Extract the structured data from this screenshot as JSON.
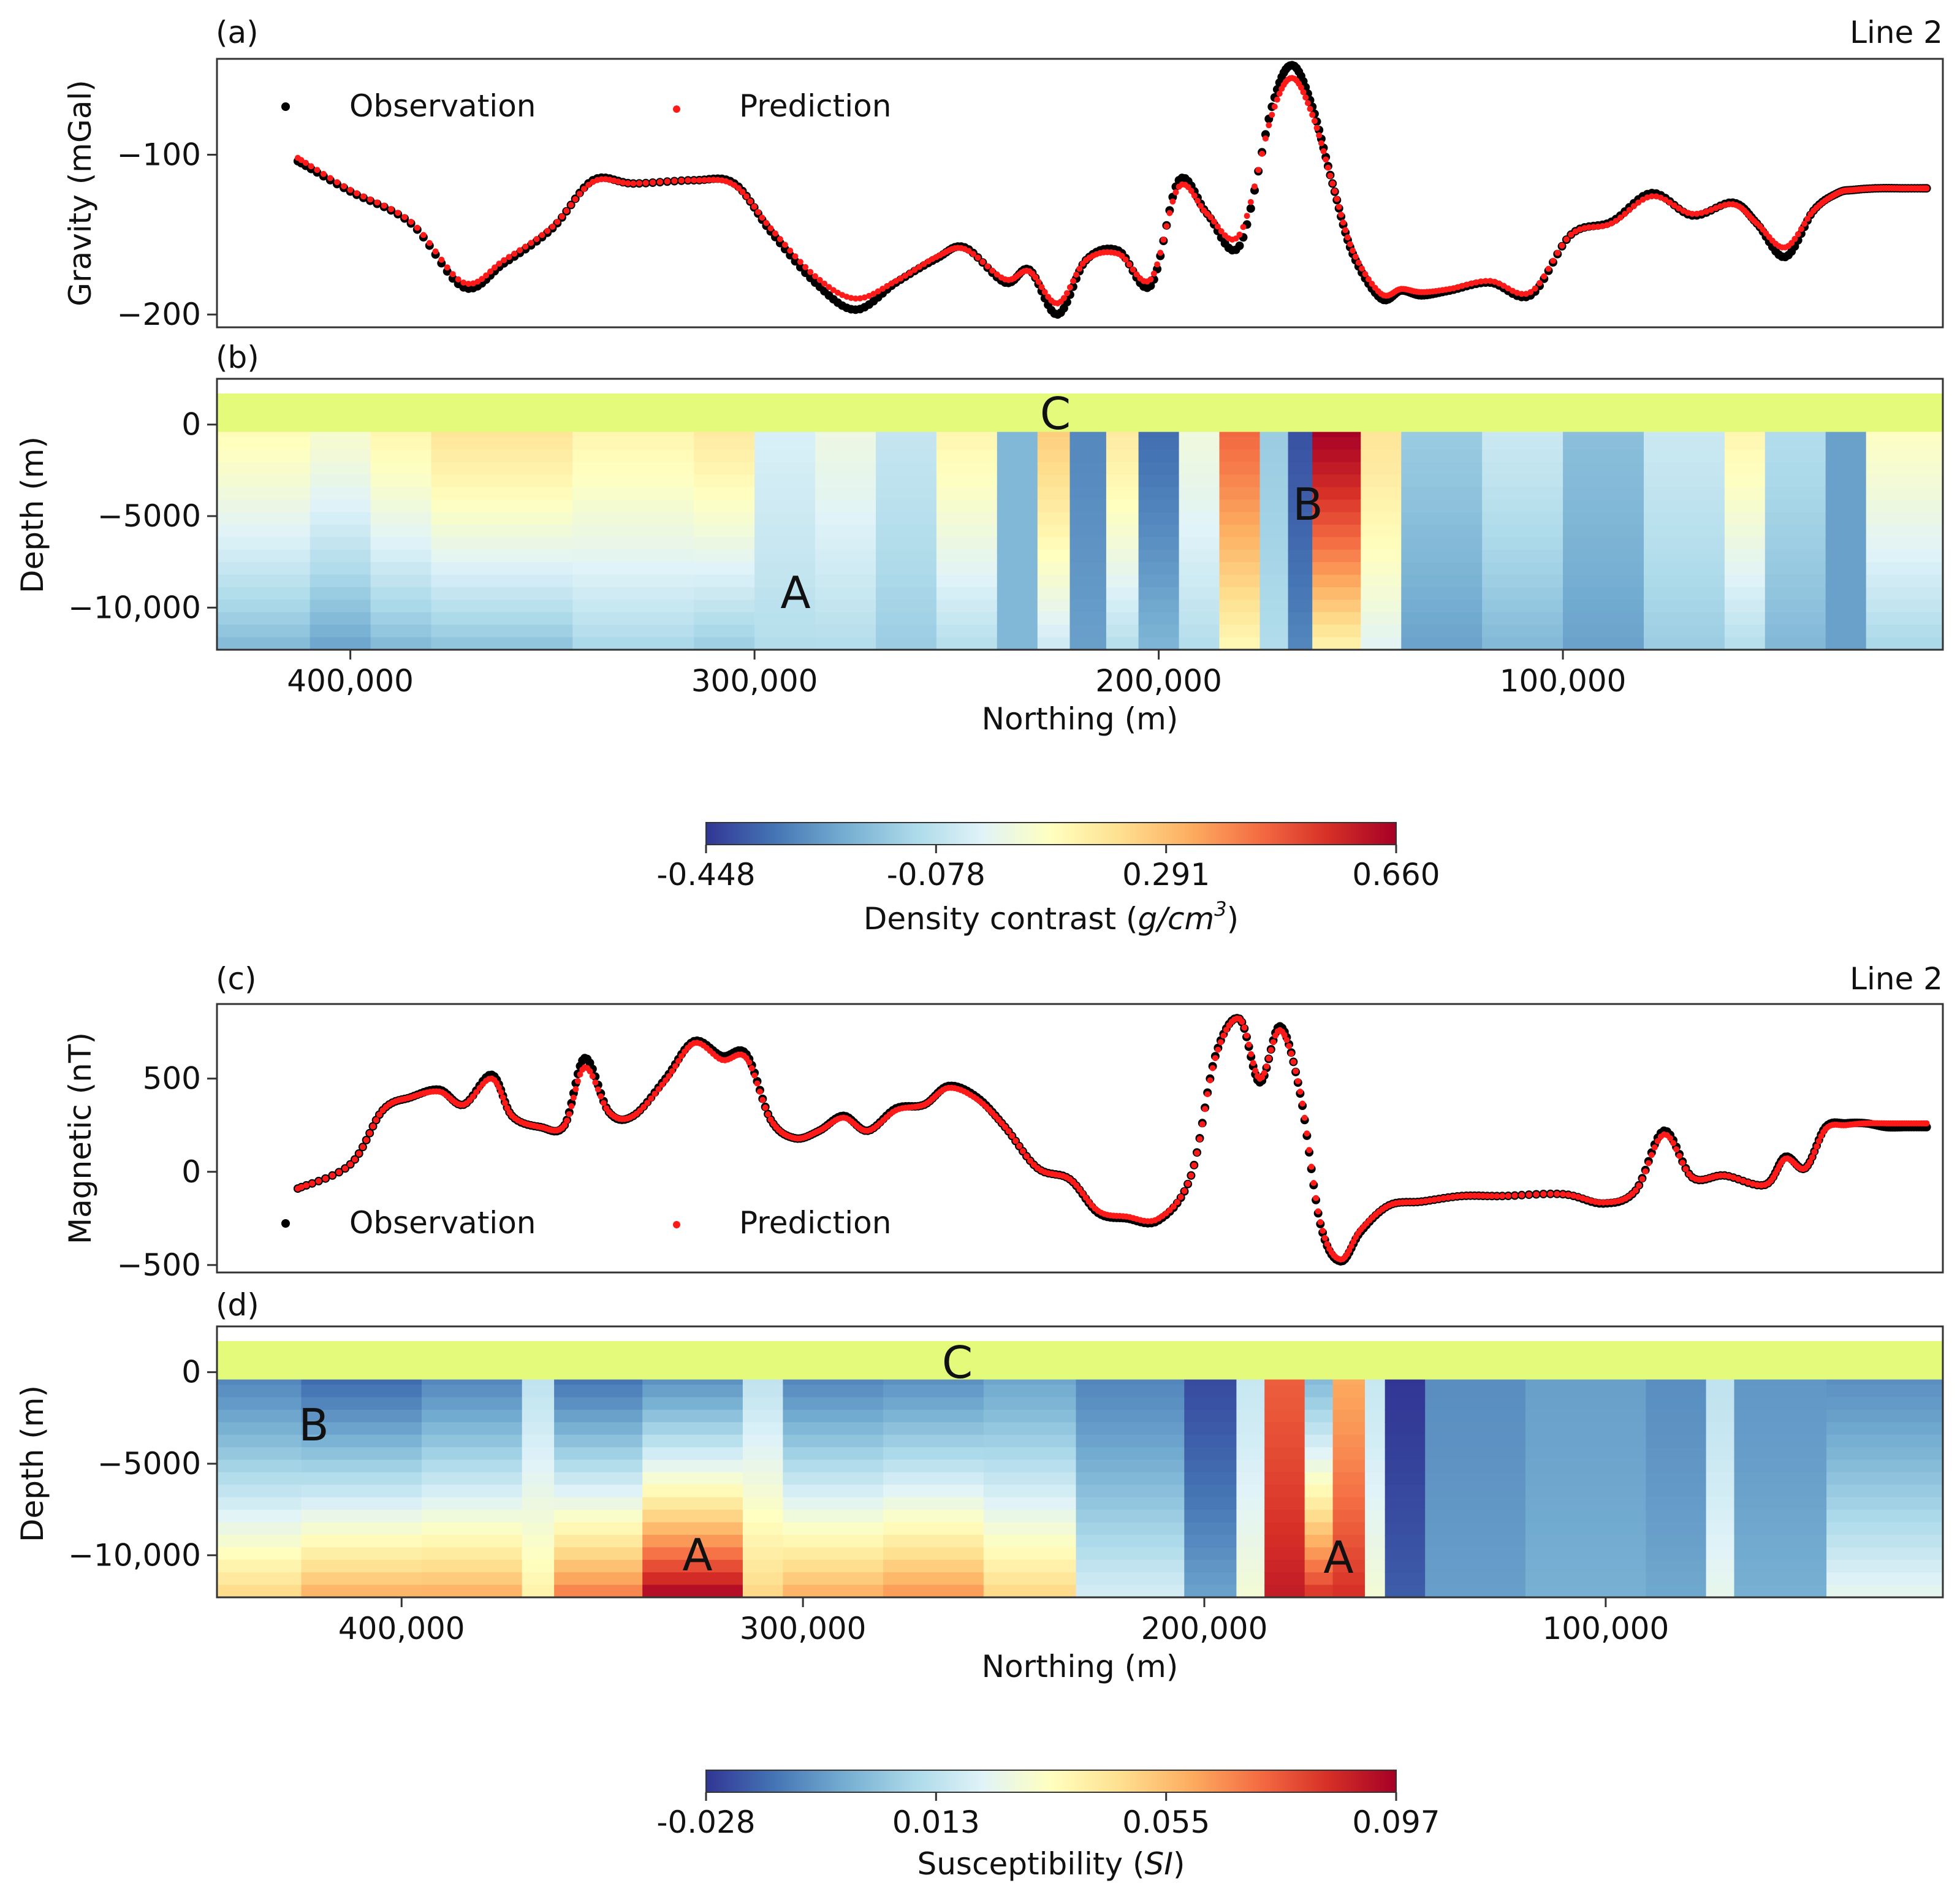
{
  "figure": {
    "line_label": "Line 2"
  },
  "chart_data": [
    {
      "panel": "(a)",
      "type": "line",
      "title": "Line 2",
      "ylabel": "Gravity (mGal)",
      "yticks": [
        -100,
        -200
      ],
      "ytick_labels": [
        "−100",
        "−200"
      ],
      "ylim": [
        -208,
        -40
      ],
      "xlim": [
        433000,
        6000
      ],
      "legend": {
        "placement": "top-left"
      },
      "series": [
        {
          "name": "Observation",
          "color": "#000000",
          "x": [
            413000,
            400000,
            385000,
            372000,
            362000,
            350000,
            340000,
            330000,
            315000,
            305000,
            296000,
            285000,
            275000,
            265000,
            255000,
            248000,
            238000,
            232000,
            225000,
            218000,
            210000,
            202000,
            195000,
            188000,
            180000,
            172000,
            167000,
            162000,
            157000,
            152000,
            145000,
            140000,
            135000,
            128000,
            118000,
            108000,
            98000,
            88000,
            78000,
            68000,
            58000,
            52000,
            45000,
            38000,
            32000,
            28000,
            22000,
            16000,
            10000
          ],
          "y": [
            -104,
            -123,
            -143,
            -183,
            -168,
            -146,
            -116,
            -118,
            -116,
            -118,
            -148,
            -180,
            -197,
            -180,
            -165,
            -158,
            -180,
            -172,
            -200,
            -166,
            -160,
            -182,
            -116,
            -137,
            -157,
            -70,
            -44,
            -70,
            -118,
            -162,
            -190,
            -185,
            -188,
            -185,
            -180,
            -188,
            -150,
            -142,
            -124,
            -138,
            -130,
            -143,
            -164,
            -135,
            -124,
            -122,
            -121,
            -121,
            -121
          ]
        },
        {
          "name": "Prediction",
          "color": "#ff1a1a",
          "x": [
            413000,
            400000,
            385000,
            372000,
            362000,
            350000,
            340000,
            330000,
            315000,
            305000,
            296000,
            285000,
            275000,
            265000,
            255000,
            248000,
            238000,
            232000,
            225000,
            218000,
            210000,
            202000,
            195000,
            188000,
            180000,
            172000,
            167000,
            162000,
            157000,
            152000,
            145000,
            140000,
            135000,
            128000,
            118000,
            108000,
            98000,
            88000,
            78000,
            68000,
            58000,
            52000,
            45000,
            38000,
            32000,
            28000,
            22000,
            16000,
            10000
          ],
          "y": [
            -102,
            -122,
            -142,
            -180,
            -166,
            -145,
            -117,
            -118,
            -116,
            -119,
            -146,
            -176,
            -190,
            -179,
            -164,
            -159,
            -178,
            -173,
            -193,
            -166,
            -162,
            -178,
            -120,
            -137,
            -150,
            -75,
            -52,
            -75,
            -118,
            -160,
            -187,
            -184,
            -186,
            -184,
            -179,
            -186,
            -150,
            -143,
            -126,
            -137,
            -131,
            -143,
            -158,
            -135,
            -124,
            -122,
            -121,
            -121,
            -121
          ]
        }
      ]
    },
    {
      "panel": "(b)",
      "type": "heatmap",
      "ylabel": "Depth (m)",
      "xlabel": "Northing (m)",
      "yticks": [
        0,
        -5000,
        -10000
      ],
      "ytick_labels": [
        "0",
        "−5000",
        "−10,000"
      ],
      "xticks": [
        400000,
        300000,
        200000,
        100000
      ],
      "xtick_labels": [
        "400,000",
        "300,000",
        "200,000",
        "100,000"
      ],
      "xlim": [
        433000,
        6000
      ],
      "ylim": [
        -12300,
        2500
      ],
      "annotations": [
        "A",
        "B",
        "C"
      ],
      "colorbar": {
        "label": "Density contrast (",
        "label_unit": "g/cm",
        "label_exp": "3",
        "label_close": ")",
        "min": -0.448,
        "max": 0.66,
        "tick_labels": [
          "-0.448",
          "-0.078",
          "0.291",
          "0.660"
        ]
      },
      "model_columns": [
        {
          "x_from": 433000,
          "x_to": 410000,
          "shallow": 0.12,
          "deep": -0.2
        },
        {
          "x_from": 410000,
          "x_to": 395000,
          "shallow": 0.08,
          "deep": -0.25
        },
        {
          "x_from": 395000,
          "x_to": 380000,
          "shallow": 0.14,
          "deep": -0.2
        },
        {
          "x_from": 380000,
          "x_to": 345000,
          "shallow": 0.2,
          "deep": -0.18
        },
        {
          "x_from": 345000,
          "x_to": 315000,
          "shallow": 0.14,
          "deep": -0.12
        },
        {
          "x_from": 315000,
          "x_to": 300000,
          "shallow": 0.18,
          "deep": -0.15
        },
        {
          "x_from": 300000,
          "x_to": 285000,
          "shallow": -0.02,
          "deep": -0.1
        },
        {
          "x_from": 285000,
          "x_to": 270000,
          "shallow": 0.04,
          "deep": -0.1
        },
        {
          "x_from": 270000,
          "x_to": 255000,
          "shallow": -0.06,
          "deep": -0.15
        },
        {
          "x_from": 255000,
          "x_to": 240000,
          "shallow": 0.14,
          "deep": -0.1
        },
        {
          "x_from": 240000,
          "x_to": 230000,
          "shallow": -0.2,
          "deep": -0.2
        },
        {
          "x_from": 230000,
          "x_to": 222000,
          "shallow": 0.26,
          "deep": -0.05
        },
        {
          "x_from": 222000,
          "x_to": 213000,
          "shallow": -0.3,
          "deep": -0.25
        },
        {
          "x_from": 213000,
          "x_to": 205000,
          "shallow": 0.18,
          "deep": -0.1
        },
        {
          "x_from": 205000,
          "x_to": 195000,
          "shallow": -0.35,
          "deep": -0.2
        },
        {
          "x_from": 195000,
          "x_to": 185000,
          "shallow": 0.05,
          "deep": -0.1
        },
        {
          "x_from": 185000,
          "x_to": 175000,
          "shallow": 0.45,
          "deep": 0.12
        },
        {
          "x_from": 175000,
          "x_to": 168000,
          "shallow": -0.15,
          "deep": -0.1
        },
        {
          "x_from": 168000,
          "x_to": 162000,
          "shallow": -0.4,
          "deep": -0.3
        },
        {
          "x_from": 162000,
          "x_to": 150000,
          "shallow": 0.66,
          "deep": 0.14
        },
        {
          "x_from": 150000,
          "x_to": 140000,
          "shallow": 0.2,
          "deep": 0.0
        },
        {
          "x_from": 140000,
          "x_to": 120000,
          "shallow": -0.15,
          "deep": -0.25
        },
        {
          "x_from": 120000,
          "x_to": 100000,
          "shallow": -0.05,
          "deep": -0.2
        },
        {
          "x_from": 100000,
          "x_to": 80000,
          "shallow": -0.18,
          "deep": -0.25
        },
        {
          "x_from": 80000,
          "x_to": 60000,
          "shallow": -0.05,
          "deep": -0.15
        },
        {
          "x_from": 60000,
          "x_to": 50000,
          "shallow": 0.14,
          "deep": -0.1
        },
        {
          "x_from": 50000,
          "x_to": 35000,
          "shallow": -0.1,
          "deep": -0.2
        },
        {
          "x_from": 35000,
          "x_to": 25000,
          "shallow": -0.25,
          "deep": -0.25
        },
        {
          "x_from": 25000,
          "x_to": 6000,
          "shallow": 0.1,
          "deep": -0.12
        }
      ]
    },
    {
      "panel": "(c)",
      "type": "line",
      "title": "Line 2",
      "ylabel": "Magnetic (nT)",
      "yticks": [
        500,
        0,
        -500
      ],
      "ytick_labels": [
        "500",
        "0",
        "−500"
      ],
      "ylim": [
        -540,
        900
      ],
      "xlim": [
        433000,
        6000
      ],
      "legend": {
        "placement": "lower-left"
      },
      "series": [
        {
          "name": "Observation",
          "color": "#000000",
          "x": [
            413000,
            400000,
            392000,
            385000,
            378000,
            372000,
            365000,
            360000,
            353000,
            347000,
            342000,
            336000,
            330000,
            322000,
            315000,
            308000,
            302000,
            296000,
            290000,
            284000,
            278000,
            272000,
            265000,
            258000,
            252000,
            245000,
            238000,
            230000,
            222000,
            215000,
            208000,
            200000,
            192000,
            186000,
            180000,
            175000,
            170000,
            165000,
            160000,
            155000,
            150000,
            143000,
            135000,
            125000,
            115000,
            100000,
            90000,
            82000,
            75000,
            68000,
            60000,
            50000,
            45000,
            40000,
            35000,
            30000,
            25000,
            20000,
            15000,
            10000
          ],
          "y": [
            -90,
            40,
            330,
            400,
            440,
            360,
            520,
            300,
            240,
            250,
            610,
            320,
            300,
            500,
            700,
            620,
            630,
            280,
            180,
            220,
            300,
            220,
            340,
            360,
            460,
            400,
            240,
            20,
            -40,
            -220,
            -250,
            -260,
            -20,
            620,
            820,
            480,
            780,
            420,
            -280,
            -480,
            -320,
            -180,
            -160,
            -130,
            -130,
            -120,
            -170,
            -100,
            220,
            -30,
            -20,
            -70,
            80,
            20,
            240,
            260,
            260,
            240,
            240,
            240
          ]
        },
        {
          "name": "Prediction",
          "color": "#ff1a1a",
          "x": [
            413000,
            400000,
            392000,
            385000,
            378000,
            372000,
            365000,
            360000,
            353000,
            347000,
            342000,
            336000,
            330000,
            322000,
            315000,
            308000,
            302000,
            296000,
            290000,
            284000,
            278000,
            272000,
            265000,
            258000,
            252000,
            245000,
            238000,
            230000,
            222000,
            215000,
            208000,
            200000,
            192000,
            186000,
            180000,
            175000,
            170000,
            165000,
            160000,
            155000,
            150000,
            143000,
            135000,
            125000,
            115000,
            100000,
            90000,
            82000,
            75000,
            68000,
            60000,
            50000,
            45000,
            40000,
            35000,
            30000,
            25000,
            20000,
            15000,
            10000
          ],
          "y": [
            -90,
            40,
            330,
            400,
            430,
            360,
            500,
            300,
            240,
            250,
            560,
            320,
            300,
            490,
            690,
            600,
            610,
            280,
            180,
            220,
            290,
            220,
            330,
            360,
            450,
            390,
            240,
            20,
            -40,
            -210,
            -240,
            -250,
            -20,
            610,
            820,
            500,
            760,
            430,
            -270,
            -470,
            -310,
            -180,
            -160,
            -130,
            -130,
            -120,
            -165,
            -100,
            200,
            -30,
            -20,
            -70,
            70,
            20,
            230,
            250,
            260,
            260,
            260,
            260
          ]
        }
      ]
    },
    {
      "panel": "(d)",
      "type": "heatmap",
      "ylabel": "Depth (m)",
      "xlabel": "Northing (m)",
      "yticks": [
        0,
        -5000,
        -10000
      ],
      "ytick_labels": [
        "0",
        "−5000",
        "−10,000"
      ],
      "xticks": [
        400000,
        300000,
        200000,
        100000
      ],
      "xtick_labels": [
        "400,000",
        "300,000",
        "200,000",
        "100,000"
      ],
      "xlim": [
        446000,
        16000
      ],
      "ylim": [
        -12300,
        2500
      ],
      "annotations": [
        "A",
        "A",
        "B",
        "C"
      ],
      "colorbar": {
        "label": "Susceptibility (",
        "label_unit": "SI",
        "label_close": ")",
        "min": -0.028,
        "max": 0.097,
        "tick_labels": [
          "-0.028",
          "0.013",
          "0.055",
          "0.097"
        ]
      },
      "model_columns": [
        {
          "x_from": 446000,
          "x_to": 425000,
          "shallow": -0.012,
          "deep": 0.05
        },
        {
          "x_from": 425000,
          "x_to": 395000,
          "shallow": -0.018,
          "deep": 0.06
        },
        {
          "x_from": 395000,
          "x_to": 370000,
          "shallow": -0.012,
          "deep": 0.06
        },
        {
          "x_from": 370000,
          "x_to": 362000,
          "shallow": 0.014,
          "deep": 0.04
        },
        {
          "x_from": 362000,
          "x_to": 340000,
          "shallow": -0.016,
          "deep": 0.07
        },
        {
          "x_from": 340000,
          "x_to": 315000,
          "shallow": -0.01,
          "deep": 0.097
        },
        {
          "x_from": 315000,
          "x_to": 305000,
          "shallow": 0.014,
          "deep": 0.05
        },
        {
          "x_from": 305000,
          "x_to": 280000,
          "shallow": -0.012,
          "deep": 0.06
        },
        {
          "x_from": 280000,
          "x_to": 255000,
          "shallow": -0.01,
          "deep": 0.065
        },
        {
          "x_from": 255000,
          "x_to": 232000,
          "shallow": -0.005,
          "deep": 0.05
        },
        {
          "x_from": 232000,
          "x_to": 205000,
          "shallow": -0.012,
          "deep": 0.02
        },
        {
          "x_from": 205000,
          "x_to": 192000,
          "shallow": -0.024,
          "deep": -0.005
        },
        {
          "x_from": 192000,
          "x_to": 185000,
          "shallow": 0.016,
          "deep": 0.03
        },
        {
          "x_from": 185000,
          "x_to": 175000,
          "shallow": 0.075,
          "deep": 0.09
        },
        {
          "x_from": 175000,
          "x_to": 168000,
          "shallow": 0.0,
          "deep": 0.085
        },
        {
          "x_from": 168000,
          "x_to": 160000,
          "shallow": 0.06,
          "deep": 0.085
        },
        {
          "x_from": 160000,
          "x_to": 155000,
          "shallow": 0.016,
          "deep": 0.03
        },
        {
          "x_from": 155000,
          "x_to": 145000,
          "shallow": -0.028,
          "deep": -0.02
        },
        {
          "x_from": 145000,
          "x_to": 120000,
          "shallow": -0.01,
          "deep": -0.006
        },
        {
          "x_from": 120000,
          "x_to": 90000,
          "shallow": -0.006,
          "deep": -0.002
        },
        {
          "x_from": 90000,
          "x_to": 75000,
          "shallow": -0.01,
          "deep": -0.004
        },
        {
          "x_from": 75000,
          "x_to": 68000,
          "shallow": 0.014,
          "deep": 0.025
        },
        {
          "x_from": 68000,
          "x_to": 45000,
          "shallow": -0.008,
          "deep": -0.002
        },
        {
          "x_from": 45000,
          "x_to": 16000,
          "shallow": -0.01,
          "deep": 0.025
        }
      ]
    }
  ]
}
